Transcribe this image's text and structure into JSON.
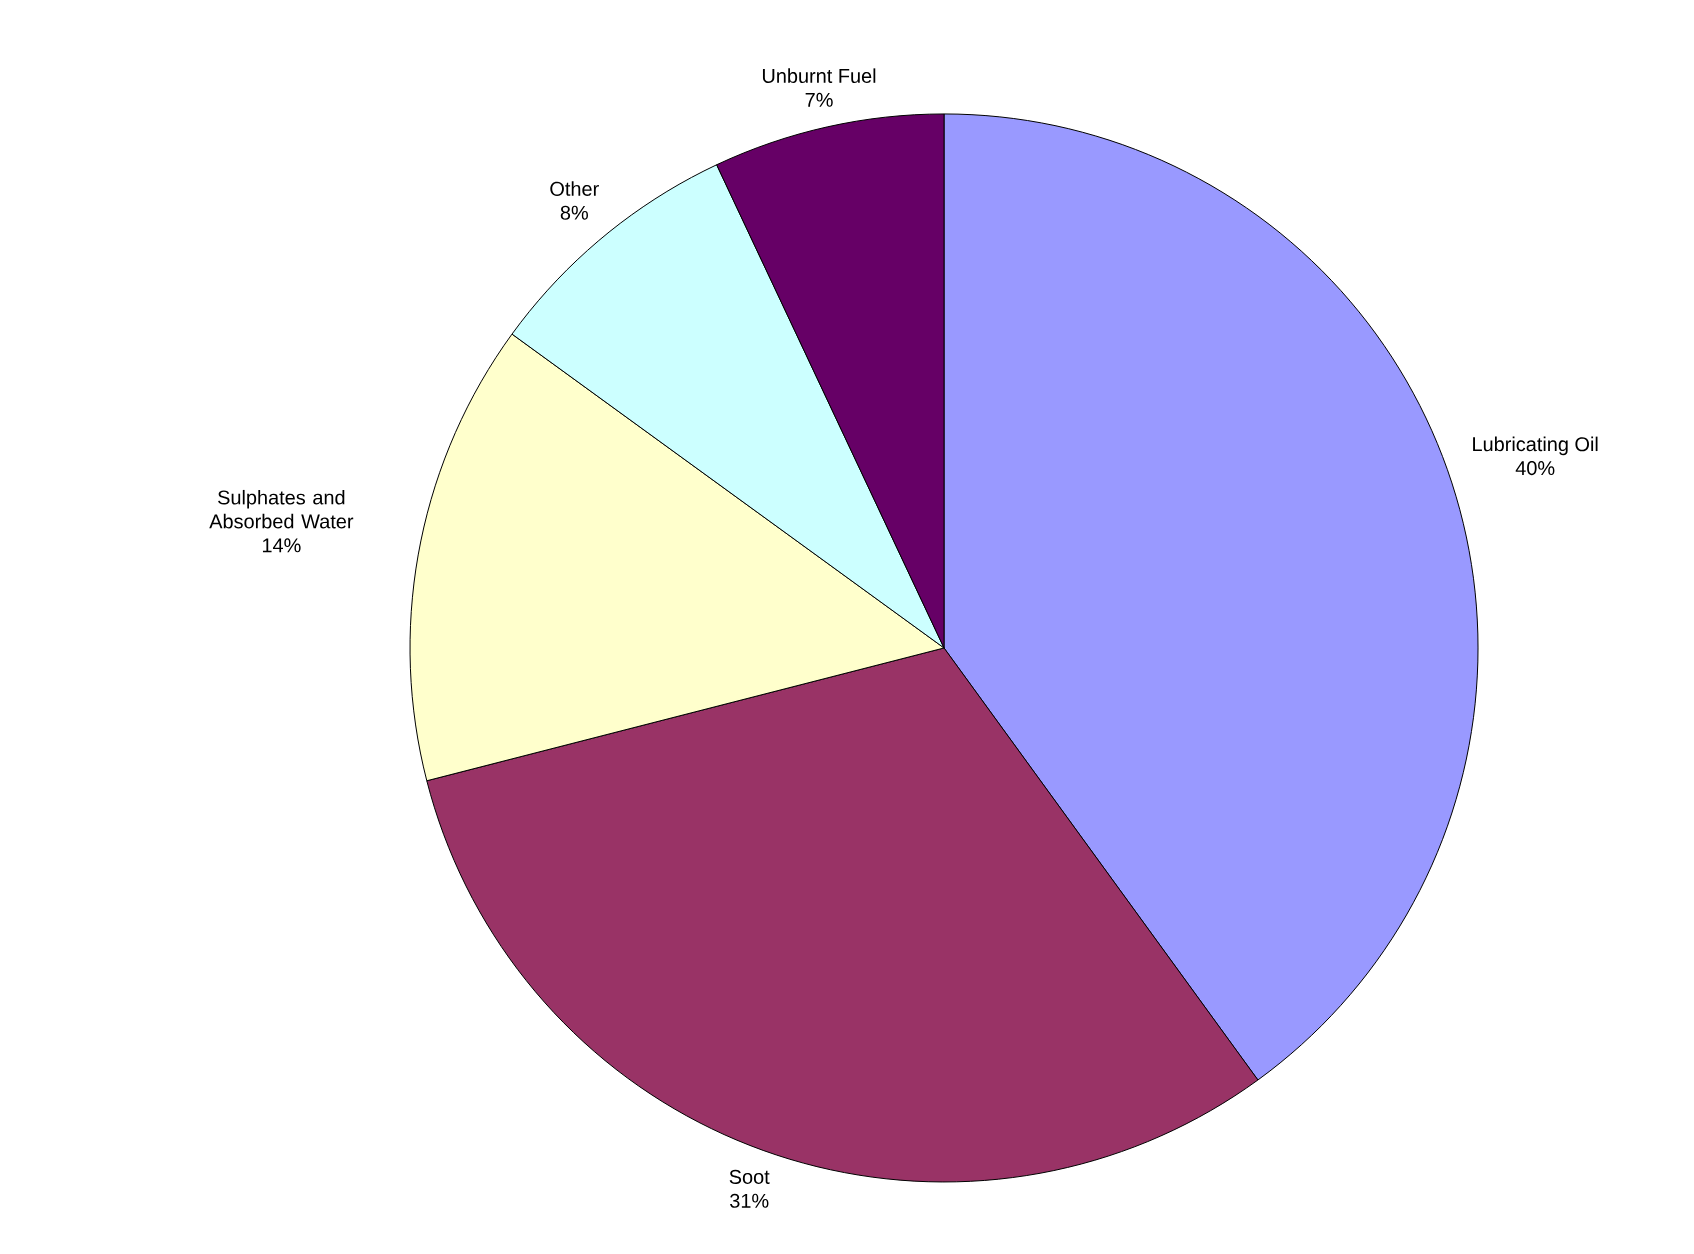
{
  "chart_data": {
    "type": "pie",
    "categories": [
      "Lubricating Oil",
      "Soot",
      "Sulphates and Absorbed Water",
      "Other",
      "Unburnt Fuel"
    ],
    "values": [
      40,
      31,
      14,
      8,
      7
    ],
    "value_labels": [
      "40%",
      "31%",
      "14%",
      "8%",
      "7%"
    ],
    "colors": [
      "#9999ff",
      "#993366",
      "#ffffcc",
      "#ccffff",
      "#660066"
    ]
  }
}
